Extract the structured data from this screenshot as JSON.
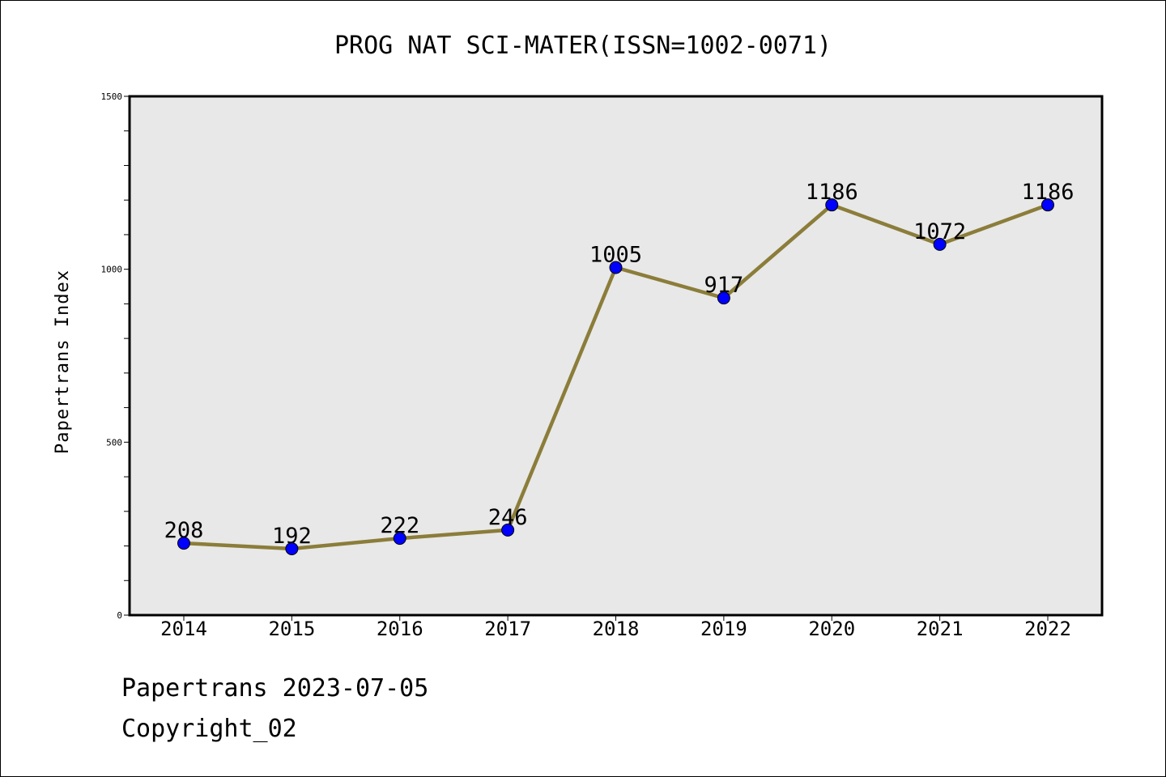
{
  "chart_data": {
    "type": "line",
    "title": "PROG NAT SCI-MATER(ISSN=1002-0071)",
    "xlabel": "",
    "ylabel": "Papertrans Index",
    "categories": [
      "2014",
      "2015",
      "2016",
      "2017",
      "2018",
      "2019",
      "2020",
      "2021",
      "2022"
    ],
    "values": [
      208,
      192,
      222,
      246,
      1005,
      917,
      1186,
      1072,
      1186
    ],
    "data_labels": [
      "208",
      "192",
      "222",
      "246",
      "1005",
      "917",
      "1186",
      "1072",
      "1186"
    ],
    "ylim": [
      0,
      1500
    ],
    "yticks": [
      0,
      500,
      1000,
      1500
    ],
    "ytick_labels": [
      "0",
      "500",
      "1000",
      "1500"
    ],
    "yminor_step": 100,
    "grid": false,
    "legend": "none",
    "colors": {
      "line": "#8B7D3A",
      "marker": "#0000FF",
      "plot_background": "#E8E8E8"
    }
  },
  "footer": {
    "line1": "Papertrans 2023-07-05",
    "line2": "Copyright_02"
  }
}
